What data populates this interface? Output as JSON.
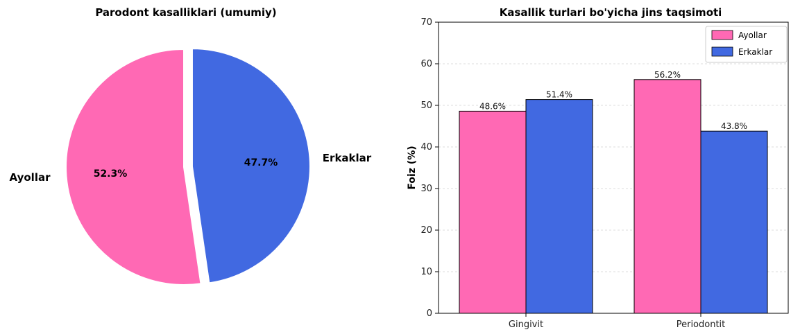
{
  "chart_data": [
    {
      "type": "pie",
      "title": "Parodont kasalliklari (umumiy)",
      "slices": [
        {
          "label": "Ayollar",
          "value": 52.3,
          "pct_label": "52.3%",
          "color": "#ff69b4",
          "exploded": false
        },
        {
          "label": "Erkaklar",
          "value": 47.7,
          "pct_label": "47.7%",
          "color": "#4169e1",
          "exploded": true
        }
      ]
    },
    {
      "type": "bar",
      "title": "Kasallik turlari bo'yicha jins taqsimoti",
      "categories": [
        "Gingivit",
        "Periodontit"
      ],
      "series": [
        {
          "name": "Ayollar",
          "color": "#ff69b4",
          "values": [
            48.6,
            56.2
          ],
          "labels": [
            "48.6%",
            "56.2%"
          ]
        },
        {
          "name": "Erkaklar",
          "color": "#4169e1",
          "values": [
            51.4,
            43.8
          ],
          "labels": [
            "51.4%",
            "43.8%"
          ]
        }
      ],
      "xlabel": "",
      "ylabel": "Foiz (%)",
      "ylim": [
        0,
        70
      ],
      "yticks": [
        0,
        10,
        20,
        30,
        40,
        50,
        60,
        70
      ],
      "grid": "horizontal",
      "legend": "top-right"
    }
  ]
}
